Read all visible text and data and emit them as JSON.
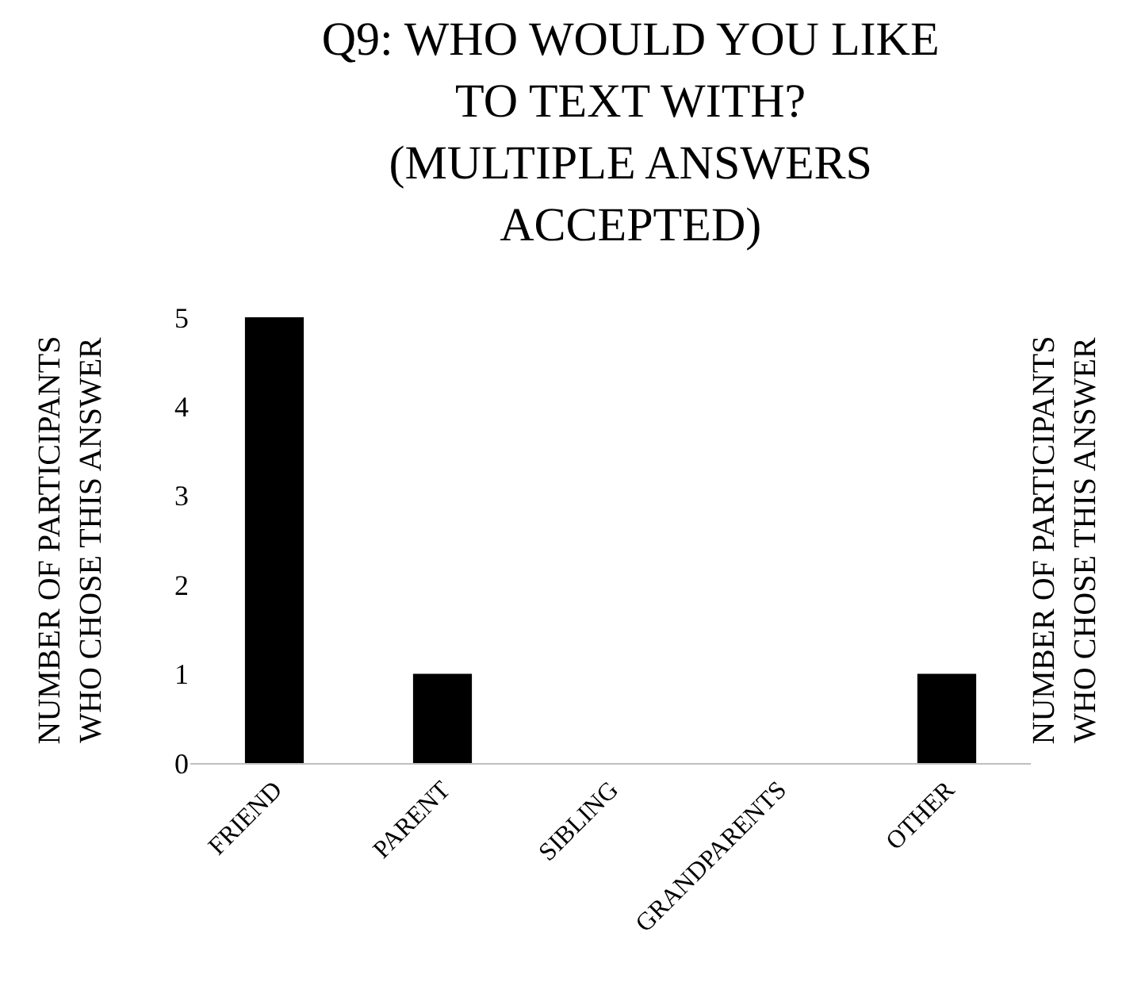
{
  "chart_data": {
    "type": "bar",
    "title": "Q9: WHO WOULD YOU LIKE TO TEXT WITH? (MULTIPLE ANSWERS ACCEPTED)",
    "ylabel": "NUMBER OF PARTICIPANTS WHO CHOSE THIS ANSWER",
    "y2label": "NUMBER OF PARTICIPANTS WHO CHOSE THIS ANSWER",
    "categories": [
      "FRIEND",
      "PARENT",
      "SIBLING",
      "GRANDPARENTS",
      "OTHER"
    ],
    "values": [
      5,
      1,
      0,
      0,
      1
    ],
    "color": "#000000",
    "ylim": [
      0,
      5
    ],
    "yticks": [
      0,
      1,
      2,
      3,
      4,
      5
    ]
  }
}
